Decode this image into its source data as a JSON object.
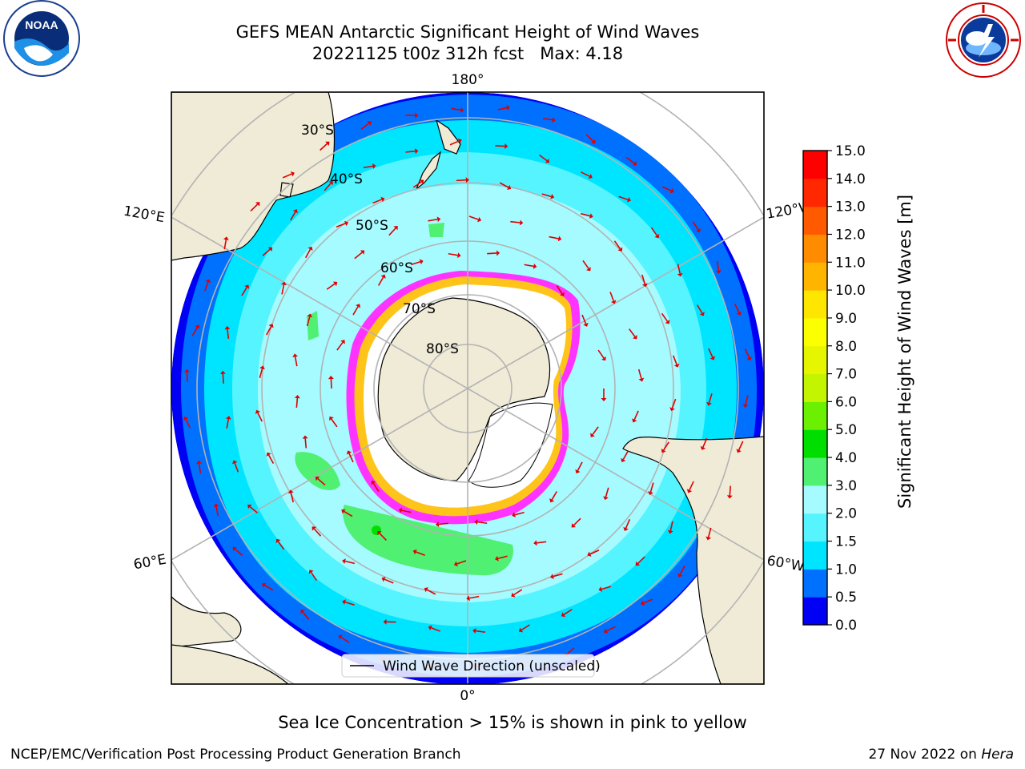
{
  "header": {
    "title_line1": "GEFS MEAN Antarctic Significant Height of Wind Waves",
    "title_line2": "20221125 t00z 312h fcst   Max: 4.18"
  },
  "logos": {
    "left": {
      "icon": "noaa-logo",
      "text": "NOAA",
      "ring_text": "NATIONAL OCEANIC AND ATMOSPHERIC ADMINISTRATION · U.S. DEPARTMENT OF COMMERCE"
    },
    "right": {
      "icon": "national-weather-service-logo",
      "ring_text": "NATIONAL WEATHER SERVICE"
    }
  },
  "map": {
    "projection": "south-polar-stereographic",
    "meridian_labels": {
      "top": "180°",
      "bottom": "0°",
      "upper_left": "120°E",
      "lower_left": "60°E",
      "upper_right": "120°W",
      "lower_right": "60°W"
    },
    "parallel_labels": [
      "30°S",
      "40°S",
      "50°S",
      "60°S",
      "70°S",
      "80°S"
    ],
    "legend": "Wind Wave Direction (unscaled)",
    "colors": {
      "land": "#efebd7",
      "ice": "#ffffff",
      "arrow": "#e00000",
      "grid": "#b3b3b3",
      "sea_ice_edge": "#ff33ff"
    }
  },
  "colorbar": {
    "label": "Significant Height of Wind Waves [m]",
    "ticks": [
      "15.0",
      "14.0",
      "13.0",
      "12.0",
      "11.0",
      "10.0",
      "9.0",
      "8.0",
      "7.0",
      "6.0",
      "5.0",
      "4.0",
      "3.0",
      "2.0",
      "1.5",
      "1.0",
      "0.5",
      "0.0"
    ],
    "bands": [
      {
        "from": 0.0,
        "to": 0.5,
        "color": "#0000f5"
      },
      {
        "from": 0.5,
        "to": 1.0,
        "color": "#0070ff"
      },
      {
        "from": 1.0,
        "to": 1.5,
        "color": "#00e5ff"
      },
      {
        "from": 1.5,
        "to": 2.0,
        "color": "#55f4ff"
      },
      {
        "from": 2.0,
        "to": 3.0,
        "color": "#a5fbff"
      },
      {
        "from": 3.0,
        "to": 4.0,
        "color": "#50f072"
      },
      {
        "from": 4.0,
        "to": 5.0,
        "color": "#00de00"
      },
      {
        "from": 5.0,
        "to": 6.0,
        "color": "#6af000"
      },
      {
        "from": 6.0,
        "to": 7.0,
        "color": "#c4f500"
      },
      {
        "from": 7.0,
        "to": 8.0,
        "color": "#e6f500"
      },
      {
        "from": 8.0,
        "to": 9.0,
        "color": "#fcff00"
      },
      {
        "from": 9.0,
        "to": 10.0,
        "color": "#ffe600"
      },
      {
        "from": 10.0,
        "to": 11.0,
        "color": "#ffb400"
      },
      {
        "from": 11.0,
        "to": 12.0,
        "color": "#ff8c00"
      },
      {
        "from": 12.0,
        "to": 13.0,
        "color": "#ff5a00"
      },
      {
        "from": 13.0,
        "to": 14.0,
        "color": "#ff2800"
      },
      {
        "from": 14.0,
        "to": 15.0,
        "color": "#ff0000"
      }
    ]
  },
  "caption": "Sea Ice Concentration > 15% is shown in pink to yellow",
  "footer": {
    "left": "NCEP/EMC/Verification Post Processing Product Generation Branch",
    "right_date": "27 Nov 2022 on",
    "right_machine": "Hera"
  }
}
